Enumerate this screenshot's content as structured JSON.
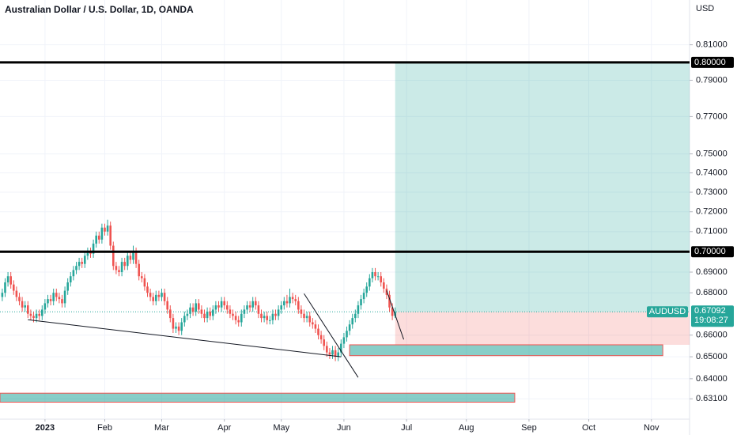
{
  "chart_data": {
    "type": "candlestick",
    "title": "Australian Dollar / U.S. Dollar, 1D, OANDA",
    "currency": "USD",
    "symbol": "AUDUSD",
    "last_price": 0.67092,
    "countdown": "19:08:27",
    "up_color": "#26a69a",
    "down_color": "#ef5350",
    "log": true,
    "grid": true,
    "xlim": [
      -15.8,
      226.4
    ],
    "ylim": [
      0.622,
      0.836
    ],
    "xticks": [
      {
        "value": 0,
        "label": "2023"
      },
      {
        "value": 21,
        "label": "Feb"
      },
      {
        "value": 41,
        "label": "Mar"
      },
      {
        "value": 63,
        "label": "Apr"
      },
      {
        "value": 83,
        "label": "May"
      },
      {
        "value": 105,
        "label": "Jun"
      },
      {
        "value": 127,
        "label": "Jul"
      },
      {
        "value": 148,
        "label": "Aug"
      },
      {
        "value": 170,
        "label": "Sep"
      },
      {
        "value": 191,
        "label": "Oct"
      },
      {
        "value": 213,
        "label": "Nov"
      }
    ],
    "yticks": [
      {
        "value": 0.81,
        "label": "0.81000"
      },
      {
        "value": 0.79,
        "label": "0.79000"
      },
      {
        "value": 0.77,
        "label": "0.77000"
      },
      {
        "value": 0.75,
        "label": "0.75000"
      },
      {
        "value": 0.74,
        "label": "0.74000"
      },
      {
        "value": 0.73,
        "label": "0.73000"
      },
      {
        "value": 0.72,
        "label": "0.72000"
      },
      {
        "value": 0.71,
        "label": "0.71000"
      },
      {
        "value": 0.69,
        "label": "0.69000"
      },
      {
        "value": 0.68,
        "label": "0.68000"
      },
      {
        "value": 0.66,
        "label": "0.66000"
      },
      {
        "value": 0.65,
        "label": "0.65000"
      },
      {
        "value": 0.64,
        "label": "0.64000"
      },
      {
        "value": 0.631,
        "label": "0.63100"
      }
    ],
    "hlines": [
      {
        "value": 0.8,
        "label": "0.80000"
      },
      {
        "value": 0.7,
        "label": "0.70000"
      }
    ],
    "position": {
      "start": 123,
      "entry": 0.6709,
      "target": 0.8,
      "stop": 0.6555
    },
    "zones": [
      {
        "x": [
          107,
          217
        ],
        "y": [
          0.6505,
          0.6555
        ]
      },
      {
        "x": [
          -15.8,
          165
        ],
        "y": [
          0.6295,
          0.6335
        ]
      }
    ],
    "lines": [
      {
        "x": [
          -6,
          104
        ],
        "y": [
          0.6672,
          0.65
        ]
      },
      {
        "x": [
          91,
          110
        ],
        "y": [
          0.6796,
          0.6406
        ]
      },
      {
        "x": [
          120,
          126
        ],
        "y": [
          0.6811,
          0.658
        ]
      }
    ],
    "x": [
      -15,
      -14,
      -13,
      -12,
      -11,
      -10,
      -9,
      -8,
      -7,
      -6,
      -5,
      -4,
      -3,
      -2,
      -1,
      0,
      1,
      2,
      3,
      4,
      5,
      6,
      7,
      8,
      9,
      10,
      11,
      12,
      13,
      14,
      15,
      16,
      17,
      18,
      19,
      20,
      21,
      22,
      23,
      24,
      25,
      26,
      27,
      28,
      29,
      30,
      31,
      32,
      33,
      34,
      35,
      36,
      37,
      38,
      39,
      40,
      41,
      42,
      43,
      44,
      45,
      46,
      47,
      48,
      49,
      50,
      51,
      52,
      53,
      54,
      55,
      56,
      57,
      58,
      59,
      60,
      61,
      62,
      63,
      64,
      65,
      66,
      67,
      68,
      69,
      70,
      71,
      72,
      73,
      74,
      75,
      76,
      77,
      78,
      79,
      80,
      81,
      82,
      83,
      84,
      85,
      86,
      87,
      88,
      89,
      90,
      91,
      92,
      93,
      94,
      95,
      96,
      97,
      98,
      99,
      100,
      101,
      102,
      103,
      104,
      105,
      106,
      107,
      108,
      109,
      110,
      111,
      112,
      113,
      114,
      115,
      116,
      117,
      118,
      119,
      120,
      121,
      122,
      123
    ],
    "open": [
      0.678,
      0.68,
      0.685,
      0.688,
      0.684,
      0.681,
      0.678,
      0.676,
      0.673,
      0.674,
      0.67,
      0.669,
      0.668,
      0.67,
      0.669,
      0.672,
      0.675,
      0.677,
      0.676,
      0.68,
      0.678,
      0.677,
      0.675,
      0.681,
      0.685,
      0.688,
      0.691,
      0.693,
      0.695,
      0.694,
      0.698,
      0.7,
      0.699,
      0.704,
      0.708,
      0.706,
      0.712,
      0.71,
      0.713,
      0.703,
      0.693,
      0.691,
      0.69,
      0.695,
      0.693,
      0.698,
      0.696,
      0.7,
      0.694,
      0.688,
      0.687,
      0.683,
      0.68,
      0.678,
      0.676,
      0.679,
      0.678,
      0.68,
      0.676,
      0.672,
      0.668,
      0.663,
      0.664,
      0.662,
      0.666,
      0.669,
      0.67,
      0.673,
      0.671,
      0.675,
      0.672,
      0.67,
      0.668,
      0.671,
      0.669,
      0.672,
      0.674,
      0.673,
      0.676,
      0.674,
      0.672,
      0.67,
      0.669,
      0.667,
      0.666,
      0.67,
      0.672,
      0.674,
      0.673,
      0.676,
      0.674,
      0.67,
      0.668,
      0.669,
      0.667,
      0.667,
      0.67,
      0.669,
      0.672,
      0.674,
      0.676,
      0.675,
      0.678,
      0.677,
      0.676,
      0.672,
      0.67,
      0.668,
      0.669,
      0.666,
      0.665,
      0.663,
      0.66,
      0.658,
      0.655,
      0.652,
      0.651,
      0.653,
      0.65,
      0.652,
      0.656,
      0.659,
      0.662,
      0.665,
      0.668,
      0.67,
      0.674,
      0.677,
      0.68,
      0.683,
      0.687,
      0.69,
      0.688,
      0.688,
      0.685,
      0.682,
      0.679,
      0.673,
      0.669
    ],
    "high": [
      0.682,
      0.687,
      0.69,
      0.69,
      0.686,
      0.683,
      0.68,
      0.678,
      0.676,
      0.676,
      0.672,
      0.671,
      0.672,
      0.672,
      0.674,
      0.677,
      0.679,
      0.679,
      0.682,
      0.682,
      0.68,
      0.679,
      0.683,
      0.687,
      0.69,
      0.693,
      0.695,
      0.697,
      0.697,
      0.7,
      0.702,
      0.702,
      0.706,
      0.71,
      0.71,
      0.714,
      0.714,
      0.716,
      0.715,
      0.705,
      0.695,
      0.693,
      0.697,
      0.697,
      0.7,
      0.7,
      0.703,
      0.702,
      0.696,
      0.69,
      0.689,
      0.685,
      0.682,
      0.68,
      0.681,
      0.681,
      0.682,
      0.682,
      0.678,
      0.674,
      0.67,
      0.666,
      0.666,
      0.668,
      0.671,
      0.672,
      0.675,
      0.675,
      0.677,
      0.677,
      0.674,
      0.672,
      0.673,
      0.673,
      0.674,
      0.676,
      0.676,
      0.678,
      0.678,
      0.676,
      0.674,
      0.672,
      0.671,
      0.669,
      0.672,
      0.674,
      0.676,
      0.676,
      0.678,
      0.678,
      0.676,
      0.672,
      0.671,
      0.671,
      0.669,
      0.672,
      0.672,
      0.674,
      0.676,
      0.678,
      0.679,
      0.682,
      0.68,
      0.679,
      0.678,
      0.674,
      0.672,
      0.671,
      0.671,
      0.668,
      0.667,
      0.665,
      0.662,
      0.66,
      0.657,
      0.654,
      0.655,
      0.655,
      0.654,
      0.658,
      0.661,
      0.664,
      0.667,
      0.67,
      0.672,
      0.676,
      0.679,
      0.682,
      0.685,
      0.689,
      0.692,
      0.692,
      0.69,
      0.69,
      0.687,
      0.684,
      0.681,
      0.675,
      0.673
    ],
    "low": [
      0.676,
      0.678,
      0.683,
      0.682,
      0.679,
      0.676,
      0.674,
      0.671,
      0.671,
      0.668,
      0.667,
      0.666,
      0.666,
      0.667,
      0.667,
      0.67,
      0.673,
      0.674,
      0.674,
      0.676,
      0.675,
      0.673,
      0.673,
      0.679,
      0.683,
      0.686,
      0.689,
      0.691,
      0.692,
      0.692,
      0.696,
      0.697,
      0.697,
      0.702,
      0.704,
      0.704,
      0.708,
      0.708,
      0.701,
      0.691,
      0.689,
      0.688,
      0.688,
      0.691,
      0.691,
      0.694,
      0.694,
      0.692,
      0.686,
      0.685,
      0.681,
      0.678,
      0.676,
      0.674,
      0.674,
      0.676,
      0.676,
      0.674,
      0.67,
      0.666,
      0.661,
      0.661,
      0.66,
      0.66,
      0.664,
      0.667,
      0.668,
      0.669,
      0.669,
      0.67,
      0.668,
      0.666,
      0.666,
      0.667,
      0.667,
      0.67,
      0.671,
      0.671,
      0.672,
      0.67,
      0.668,
      0.667,
      0.665,
      0.664,
      0.664,
      0.668,
      0.67,
      0.671,
      0.671,
      0.672,
      0.668,
      0.666,
      0.666,
      0.665,
      0.665,
      0.665,
      0.667,
      0.667,
      0.67,
      0.672,
      0.673,
      0.673,
      0.675,
      0.674,
      0.67,
      0.668,
      0.666,
      0.666,
      0.664,
      0.663,
      0.661,
      0.658,
      0.656,
      0.653,
      0.65,
      0.649,
      0.649,
      0.648,
      0.648,
      0.65,
      0.654,
      0.657,
      0.66,
      0.663,
      0.666,
      0.668,
      0.672,
      0.675,
      0.678,
      0.681,
      0.685,
      0.686,
      0.686,
      0.683,
      0.68,
      0.677,
      0.671,
      0.667,
      0.668
    ],
    "close": [
      0.68,
      0.685,
      0.688,
      0.684,
      0.681,
      0.678,
      0.676,
      0.673,
      0.674,
      0.67,
      0.669,
      0.668,
      0.67,
      0.669,
      0.672,
      0.675,
      0.677,
      0.676,
      0.68,
      0.678,
      0.677,
      0.675,
      0.681,
      0.685,
      0.688,
      0.691,
      0.693,
      0.695,
      0.694,
      0.698,
      0.7,
      0.699,
      0.704,
      0.708,
      0.706,
      0.712,
      0.71,
      0.713,
      0.703,
      0.693,
      0.691,
      0.69,
      0.695,
      0.693,
      0.698,
      0.696,
      0.7,
      0.694,
      0.688,
      0.687,
      0.683,
      0.68,
      0.678,
      0.676,
      0.679,
      0.678,
      0.68,
      0.676,
      0.672,
      0.668,
      0.663,
      0.664,
      0.662,
      0.666,
      0.669,
      0.67,
      0.673,
      0.671,
      0.675,
      0.672,
      0.67,
      0.668,
      0.671,
      0.669,
      0.672,
      0.674,
      0.673,
      0.676,
      0.674,
      0.672,
      0.67,
      0.669,
      0.667,
      0.666,
      0.67,
      0.672,
      0.674,
      0.673,
      0.676,
      0.674,
      0.67,
      0.668,
      0.669,
      0.667,
      0.667,
      0.67,
      0.669,
      0.672,
      0.674,
      0.676,
      0.675,
      0.678,
      0.677,
      0.676,
      0.672,
      0.67,
      0.668,
      0.669,
      0.666,
      0.665,
      0.663,
      0.66,
      0.658,
      0.655,
      0.652,
      0.651,
      0.653,
      0.65,
      0.652,
      0.656,
      0.659,
      0.662,
      0.665,
      0.668,
      0.67,
      0.674,
      0.677,
      0.68,
      0.683,
      0.687,
      0.69,
      0.688,
      0.688,
      0.685,
      0.682,
      0.679,
      0.673,
      0.669,
      0.6709
    ]
  }
}
